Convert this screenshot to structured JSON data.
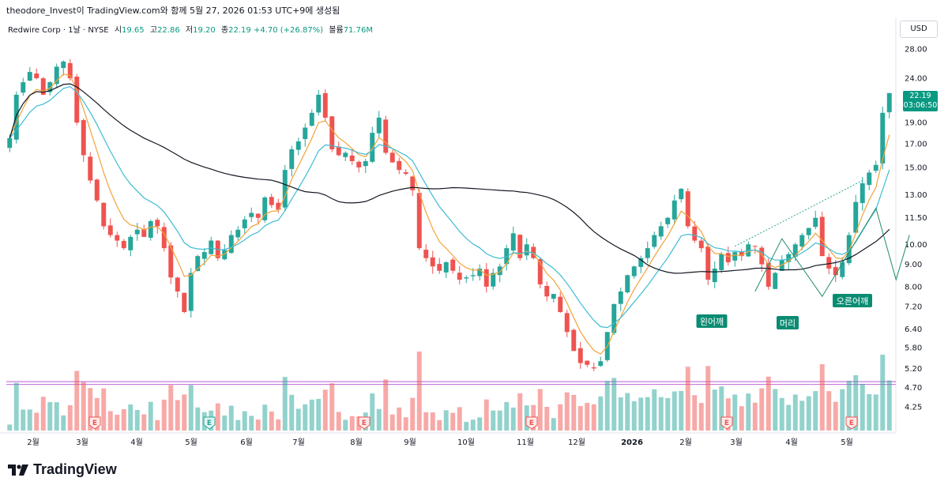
{
  "header": {
    "watermark_line": "theodore_Invest이 TradingView.com와 함께 5월 27, 2026 01:53 UTC+9에 생성됨",
    "symbol": "Redwire Corp · 1날 · NYSE",
    "o_label": "시",
    "o_value": "19.65",
    "h_label": "고",
    "h_value": "22.86",
    "l_label": "저",
    "l_value": "19.20",
    "c_label": "종",
    "c_value": "22.19",
    "change": "+4.70 (+26.87%)",
    "vol_label": "볼륨",
    "vol_value": "71.76M"
  },
  "currency_button": "USD",
  "price_tag": {
    "price": "22.19",
    "countdown": "03:06:50"
  },
  "brand": {
    "name": "TradingView"
  },
  "colors": {
    "up": "#26a69a",
    "down": "#ef5350",
    "ema_fast": "#f2a33a",
    "ema_mid": "#3dbcd3",
    "ma_long": "#131722",
    "support_band": "#c979e0",
    "label_bg": "#0a8c72"
  },
  "chart_data": {
    "type": "candlestick",
    "y_scale": "log",
    "y_ticks": [
      "28.00",
      "24.00",
      "19.00",
      "17.00",
      "15.00",
      "13.00",
      "11.50",
      "10.00",
      "9.00",
      "8.00",
      "7.20",
      "6.40",
      "5.80",
      "5.20",
      "4.70",
      "4.25"
    ],
    "x_ticks": [
      "2월",
      "3월",
      "4월",
      "5월",
      "6월",
      "7월",
      "8월",
      "9월",
      "10월",
      "11월",
      "12월",
      "2026",
      "2월",
      "3월",
      "4월",
      "5월"
    ],
    "earnings_marker": "E",
    "closes": [
      17.5,
      22.0,
      23.5,
      24.8,
      24.0,
      22.0,
      23.5,
      25.5,
      26.2,
      24.0,
      19.0,
      16.0,
      14.0,
      12.6,
      11.0,
      10.5,
      10.2,
      9.8,
      10.4,
      10.8,
      10.4,
      11.3,
      11.0,
      9.8,
      8.4,
      7.8,
      7.0,
      8.6,
      9.4,
      9.6,
      10.2,
      9.3,
      9.7,
      10.5,
      10.8,
      11.4,
      11.8,
      11.5,
      12.8,
      12.3,
      12.0,
      14.8,
      16.5,
      17.2,
      18.5,
      20.0,
      22.0,
      19.5,
      16.5,
      16.0,
      16.2,
      15.5,
      15.0,
      15.5,
      18.0,
      19.5,
      16.2,
      15.4,
      14.8,
      14.5,
      13.3,
      9.8,
      9.3,
      8.9,
      8.7,
      9.1,
      8.7,
      8.3,
      8.4,
      8.5,
      8.8,
      8.0,
      8.6,
      8.9,
      9.8,
      10.6,
      9.3,
      10.0,
      9.3,
      8.1,
      7.6,
      7.7,
      7.0,
      6.3,
      5.7,
      5.35,
      5.3,
      5.2,
      5.4,
      6.3,
      7.3,
      7.8,
      8.5,
      8.9,
      9.3,
      9.8,
      10.5,
      11.0,
      11.5,
      12.6,
      13.4,
      11.0,
      10.2,
      9.8,
      8.3,
      8.8,
      9.5,
      9.1,
      9.6,
      9.4,
      10.0,
      9.9,
      9.0,
      8.0,
      8.6,
      9.2,
      9.5,
      10.0,
      10.5,
      10.9,
      11.5,
      9.4,
      8.8,
      8.5,
      9.1,
      10.5,
      12.5,
      13.8,
      14.6,
      15.2,
      20.0,
      22.19
    ],
    "support_band": [
      4.85,
      4.78
    ],
    "pattern_labels": [
      "왼어깨",
      "머리",
      "오른어깨"
    ],
    "volume_max_note": "relative volume bars"
  }
}
